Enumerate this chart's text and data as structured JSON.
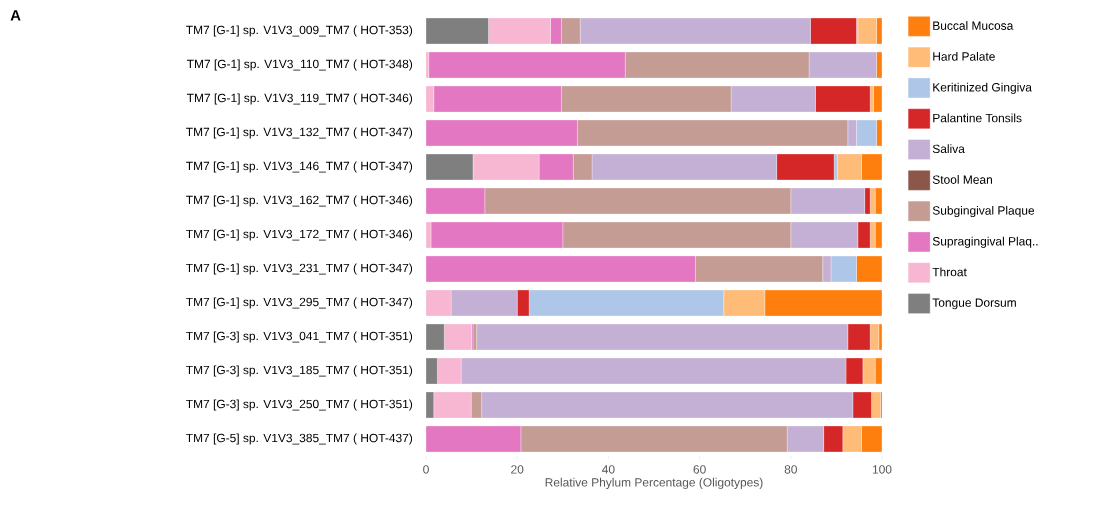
{
  "chart_data": {
    "type": "bar",
    "orientation": "horizontal",
    "stacked": true,
    "xlabel": "Relative Phylum Percentage (Oligotypes)",
    "annotations": [
      "A"
    ],
    "categories": [
      "TM7 [G-1] sp. V1V3_009_TM7 ( HOT-353)",
      "TM7 [G-1] sp. V1V3_110_TM7 ( HOT-348)",
      "TM7 [G-1] sp. V1V3_119_TM7 ( HOT-346)",
      "TM7 [G-1] sp. V1V3_132_TM7 ( HOT-347)",
      "TM7 [G-1] sp. V1V3_146_TM7 ( HOT-347)",
      "TM7 [G-1] sp. V1V3_162_TM7 ( HOT-346)",
      "TM7 [G-1] sp. V1V3_172_TM7 ( HOT-346)",
      "TM7 [G-1] sp. V1V3_231_TM7 ( HOT-347)",
      "TM7 [G-1] sp. V1V3_295_TM7 ( HOT-347)",
      "TM7 [G-3] sp. V1V3_041_TM7 ( HOT-351)",
      "TM7 [G-3] sp. V1V3_185_TM7 ( HOT-351)",
      "TM7 [G-3] sp. V1V3_250_TM7 ( HOT-351)",
      "TM7 [G-5] sp. V1V3_385_TM7 ( HOT-437)"
    ],
    "series": [
      {
        "name": "Tongue Dorsum",
        "color": "#7f7f7f",
        "values": [
          13.7,
          0,
          0,
          0,
          10.3,
          0,
          0,
          0,
          0,
          4.0,
          2.5,
          1.7,
          0
        ]
      },
      {
        "name": "Throat",
        "color": "#f7b6d2",
        "values": [
          13.6,
          0.6,
          1.7,
          0,
          14.5,
          0,
          1.1,
          0,
          5.5,
          6.0,
          5.2,
          8.2,
          0
        ]
      },
      {
        "name": "Supragingival Plaq..",
        "color": "#e377c2",
        "values": [
          2.4,
          43.1,
          28.0,
          33.2,
          7.5,
          12.9,
          28.9,
          59.1,
          0,
          0.3,
          0,
          0,
          20.8
        ]
      },
      {
        "name": "Subgingival Plaque",
        "color": "#c49c94",
        "values": [
          4.1,
          40.3,
          37.2,
          59.3,
          4.1,
          67.1,
          50.0,
          27.9,
          0,
          0.8,
          0,
          2.3,
          58.4
        ]
      },
      {
        "name": "Stool Mean",
        "color": "#8c564b",
        "values": [
          0,
          0,
          0,
          0,
          0,
          0,
          0,
          0,
          0,
          0,
          0,
          0,
          0
        ]
      },
      {
        "name": "Saliva",
        "color": "#c5b0d5",
        "values": [
          50.5,
          14.8,
          18.5,
          1.9,
          40.5,
          16.2,
          14.7,
          1.8,
          14.5,
          81.4,
          84.4,
          81.4,
          8.0
        ]
      },
      {
        "name": "Palantine Tonsils",
        "color": "#d62728",
        "values": [
          10.1,
          0,
          12.0,
          0,
          12.6,
          1.2,
          2.7,
          0,
          2.6,
          4.9,
          3.7,
          4.1,
          4.2
        ]
      },
      {
        "name": "Keritinized Gingiva",
        "color": "#aec7e8",
        "values": [
          0.3,
          0,
          0,
          4.4,
          0.7,
          0,
          0,
          5.6,
          42.7,
          0,
          0,
          0,
          0
        ]
      },
      {
        "name": "Hard Palate",
        "color": "#ffbb78",
        "values": [
          4.1,
          0,
          0.7,
          0,
          5.3,
          1.1,
          1.1,
          0,
          9.0,
          1.9,
          2.7,
          2.0,
          4.1
        ]
      },
      {
        "name": "Buccal Mucosa",
        "color": "#ff7f0e",
        "values": [
          1.2,
          1.2,
          1.9,
          1.2,
          4.5,
          1.5,
          1.5,
          5.6,
          25.7,
          0.7,
          1.5,
          0.4,
          4.5
        ]
      }
    ],
    "xlim": [
      0,
      100
    ],
    "xticks": [
      0,
      20,
      40,
      60,
      80,
      100
    ],
    "grid": false,
    "legend": "right"
  }
}
